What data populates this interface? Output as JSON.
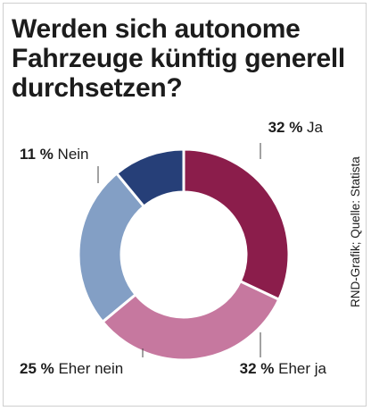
{
  "title": "Werden sich autonome Fahrzeuge künftig generell durchsetzen?",
  "source": "RND-Grafik; Quelle: Statista",
  "chart_data": {
    "type": "pie",
    "donut": true,
    "unit": "%",
    "slices": [
      {
        "label": "Ja",
        "value": 32,
        "value_label": "32 %",
        "color": "#8b1d4b"
      },
      {
        "label": "Eher ja",
        "value": 32,
        "value_label": "32 %",
        "color": "#c6789f"
      },
      {
        "label": "Eher nein",
        "value": 25,
        "value_label": "25 %",
        "color": "#839fc5"
      },
      {
        "label": "Nein",
        "value": 11,
        "value_label": "11 %",
        "color": "#263f78"
      }
    ]
  }
}
